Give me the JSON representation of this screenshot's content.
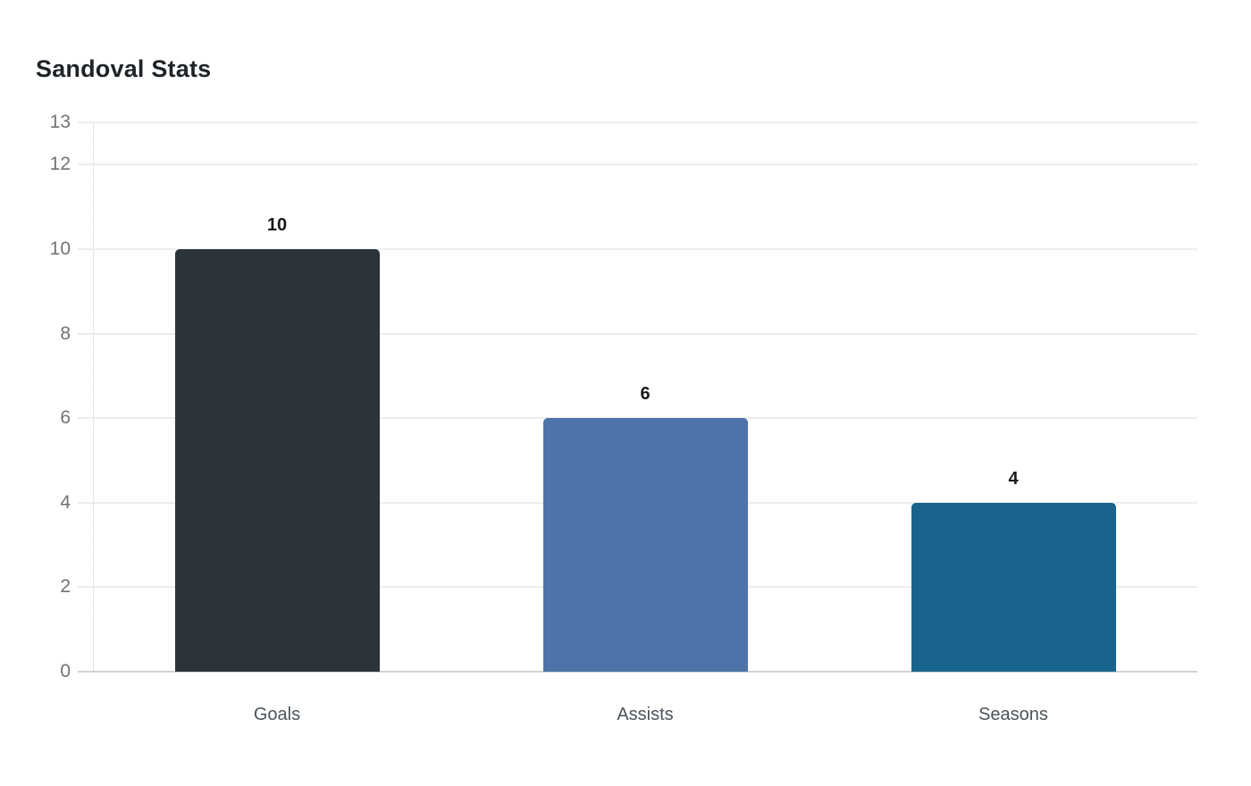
{
  "chart_data": {
    "type": "bar",
    "title": "Sandoval Stats",
    "categories": [
      "Goals",
      "Assists",
      "Seasons"
    ],
    "values": [
      10,
      6,
      4
    ],
    "value_labels": [
      "10",
      "6",
      "4"
    ],
    "bar_colors": [
      "#2b3438",
      "#4d73a9",
      "#18648c"
    ],
    "xlabel": "",
    "ylabel": "",
    "y_ticks": [
      0,
      2,
      4,
      6,
      8,
      10,
      12,
      13
    ],
    "ylim": [
      0,
      13
    ],
    "grid": true,
    "legend": false
  },
  "style": {
    "background": "#ffffff",
    "title_color": "#1e2328",
    "value_label_color": "#17191c",
    "tick_label_color": "#6f7377",
    "category_label_color": "#4b545c",
    "grid_color": "#ededed",
    "baseline_color": "#d2d2d2",
    "domain_color": "#c9c9c9"
  }
}
